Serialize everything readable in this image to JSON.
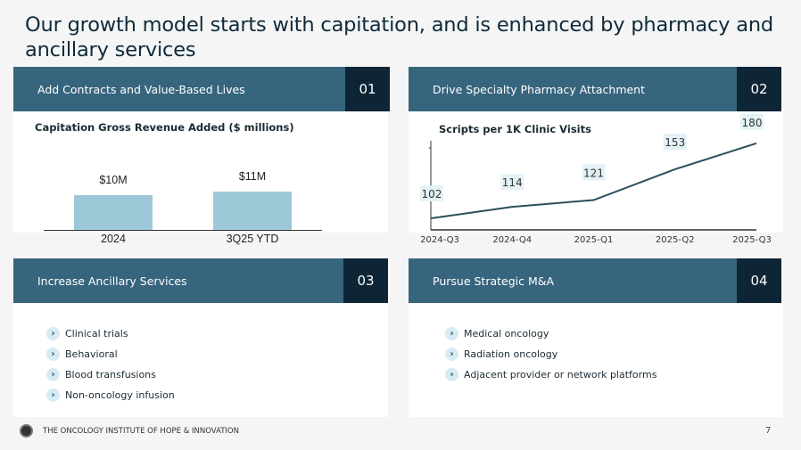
{
  "title": "Our growth model starts with capitation, and is enhanced by pharmacy and ancillary services",
  "cards": [
    {
      "header": "Add Contracts and Value-Based Lives",
      "number": "01"
    },
    {
      "header": "Drive Specialty Pharmacy Attachment",
      "number": "02"
    },
    {
      "header": "Increase Ancillary Services",
      "number": "03",
      "items": [
        "Clinical trials",
        "Behavioral",
        "Blood transfusions",
        "Non-oncology infusion"
      ]
    },
    {
      "header": "Pursue Strategic M&A",
      "number": "04",
      "items": [
        "Medical oncology",
        "Radiation oncology",
        "Adjacent provider or network platforms"
      ]
    }
  ],
  "footer": {
    "org": "THE ONCOLOGY INSTITUTE OF HOPE & INNOVATION",
    "page": "7"
  },
  "chart_data": [
    {
      "type": "bar",
      "title": "Capitation Gross Revenue Added ($ millions)",
      "categories": [
        "2024",
        "3Q25 YTD"
      ],
      "values": [
        10,
        11
      ],
      "data_labels": [
        "$10M",
        "$11M"
      ],
      "xlabel": "",
      "ylabel": ""
    },
    {
      "type": "line",
      "title": "Scripts per 1K Clinic Visits",
      "categories": [
        "2024-Q3",
        "2024-Q4",
        "2025-Q1",
        "2025-Q2",
        "2025-Q3"
      ],
      "values": [
        102,
        114,
        121,
        153,
        180
      ],
      "data_labels": [
        "102",
        "114",
        "121",
        "153",
        "180"
      ],
      "xlabel": "",
      "ylabel": ""
    }
  ]
}
